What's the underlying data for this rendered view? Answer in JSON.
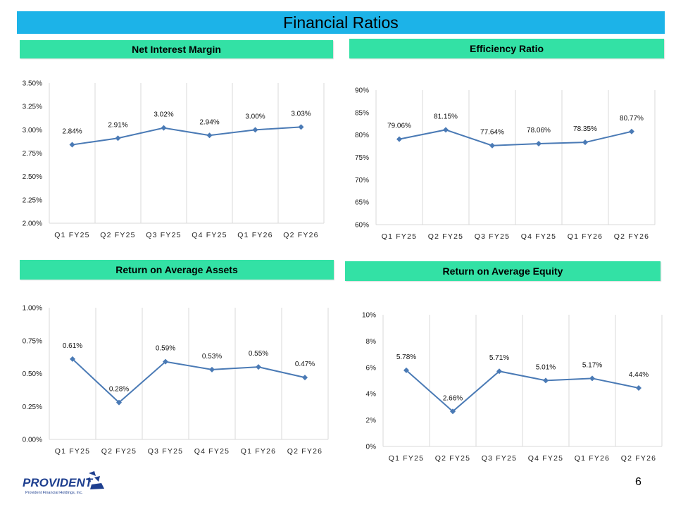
{
  "title": "Financial Ratios",
  "page_number": "6",
  "logo": {
    "name": "PROVIDENT",
    "subtitle": "Provident Financial Holdings, Inc."
  },
  "colors": {
    "title_bar": "#1cb3e8",
    "header": "#33e1a5",
    "series": "#4a7ab5",
    "grid": "#d9d9d9"
  },
  "chart_data": [
    {
      "type": "line",
      "title": "Net Interest Margin",
      "categories": [
        "Q1 FY25",
        "Q2 FY25",
        "Q3 FY25",
        "Q4 FY25",
        "Q1 FY26",
        "Q2 FY26"
      ],
      "values": [
        2.84,
        2.91,
        3.02,
        2.94,
        3.0,
        3.03
      ],
      "data_labels": [
        "2.84%",
        "2.91%",
        "3.02%",
        "2.94%",
        "3.00%",
        "3.03%"
      ],
      "ylim": [
        2.0,
        3.5
      ],
      "yticks": [
        2.0,
        2.25,
        2.5,
        2.75,
        3.0,
        3.25,
        3.5
      ],
      "ytick_labels": [
        "2.00%",
        "2.25%",
        "2.50%",
        "2.75%",
        "3.00%",
        "3.25%",
        "3.50%"
      ]
    },
    {
      "type": "line",
      "title": "Efficiency Ratio",
      "categories": [
        "Q1 FY25",
        "Q2 FY25",
        "Q3 FY25",
        "Q4 FY25",
        "Q1 FY26",
        "Q2 FY26"
      ],
      "values": [
        79.06,
        81.15,
        77.64,
        78.06,
        78.35,
        80.77
      ],
      "data_labels": [
        "79.06%",
        "81.15%",
        "77.64%",
        "78.06%",
        "78.35%",
        "80.77%"
      ],
      "ylim": [
        60,
        90
      ],
      "yticks": [
        60,
        65,
        70,
        75,
        80,
        85,
        90
      ],
      "ytick_labels": [
        "60%",
        "65%",
        "70%",
        "75%",
        "80%",
        "85%",
        "90%"
      ]
    },
    {
      "type": "line",
      "title": "Return on Average Assets",
      "categories": [
        "Q1 FY25",
        "Q2 FY25",
        "Q3 FY25",
        "Q4 FY25",
        "Q1 FY26",
        "Q2 FY26"
      ],
      "values": [
        0.61,
        0.28,
        0.59,
        0.53,
        0.55,
        0.47
      ],
      "data_labels": [
        "0.61%",
        "0.28%",
        "0.59%",
        "0.53%",
        "0.55%",
        "0.47%"
      ],
      "ylim": [
        0,
        1.0
      ],
      "yticks": [
        0,
        0.25,
        0.5,
        0.75,
        1.0
      ],
      "ytick_labels": [
        "0.00%",
        "0.25%",
        "0.50%",
        "0.75%",
        "1.00%"
      ]
    },
    {
      "type": "line",
      "title": "Return on Average Equity",
      "categories": [
        "Q1 FY25",
        "Q2 FY25",
        "Q3 FY25",
        "Q4 FY25",
        "Q1 FY26",
        "Q2 FY26"
      ],
      "values": [
        5.78,
        2.66,
        5.71,
        5.01,
        5.17,
        4.44
      ],
      "data_labels": [
        "5.78%",
        "2.66%",
        "5.71%",
        "5.01%",
        "5.17%",
        "4.44%"
      ],
      "ylim": [
        0,
        10
      ],
      "yticks": [
        0,
        2,
        4,
        6,
        8,
        10
      ],
      "ytick_labels": [
        "0%",
        "2%",
        "4%",
        "6%",
        "8%",
        "10%"
      ]
    }
  ]
}
